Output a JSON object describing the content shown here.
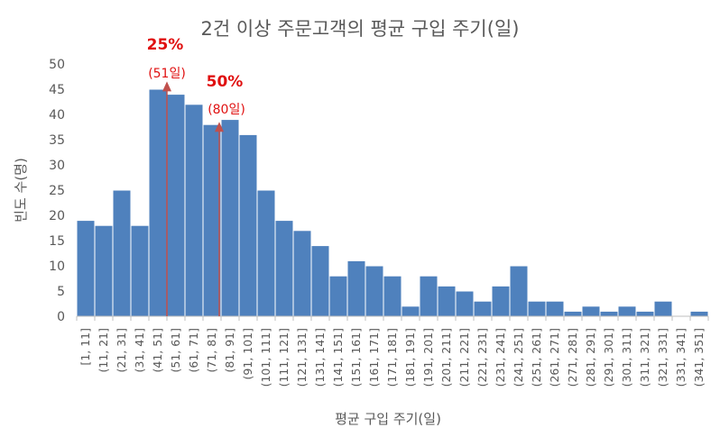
{
  "chart_data": {
    "type": "bar",
    "title": "2건 이상 주문고객의 평균 구입 주기(일)",
    "xlabel": "평균 구입 주기(일)",
    "ylabel": "빈도 수(명)",
    "ylim": [
      0,
      50
    ],
    "yticks": [
      0,
      5,
      10,
      15,
      20,
      25,
      30,
      35,
      40,
      45,
      50
    ],
    "grid": false,
    "categories": [
      "[1, 11]",
      "(11, 21]",
      "(21, 31]",
      "(31, 41]",
      "(41, 51]",
      "(51, 61]",
      "(61, 71]",
      "(71, 81]",
      "(81, 91]",
      "(91, 101]",
      "(101, 111]",
      "(111, 121]",
      "(121, 131]",
      "(131, 141]",
      "(141, 151]",
      "(151, 161]",
      "(161, 171]",
      "(171, 181]",
      "(181, 191]",
      "(191, 201]",
      "(201, 211]",
      "(211, 221]",
      "(221, 231]",
      "(231, 241]",
      "(241, 251]",
      "(251, 261]",
      "(261, 271]",
      "(271, 281]",
      "(281, 291]",
      "(291, 301]",
      "(301, 311]",
      "(311, 321]",
      "(321, 331]",
      "(331, 341]",
      "(341, 351]"
    ],
    "values": [
      19,
      18,
      25,
      18,
      45,
      44,
      42,
      38,
      39,
      36,
      25,
      19,
      17,
      14,
      8,
      11,
      10,
      8,
      2,
      8,
      6,
      5,
      3,
      6,
      10,
      3,
      3,
      1,
      2,
      1,
      2,
      1,
      3,
      0,
      1
    ],
    "bar_color": "#4f81bd",
    "annotations": [
      {
        "label": "25%",
        "sublabel": "(51일)",
        "x": 51,
        "arrow_top": 46,
        "color": "#c0504d"
      },
      {
        "label": "50%",
        "sublabel": "(80일)",
        "x": 80,
        "arrow_top": 38,
        "color": "#c0504d"
      }
    ]
  }
}
